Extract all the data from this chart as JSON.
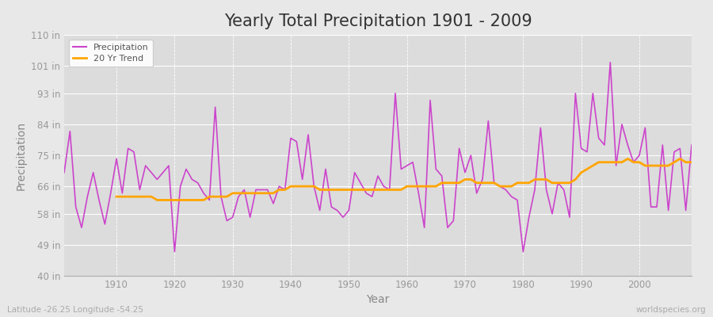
{
  "title": "Yearly Total Precipitation 1901 - 2009",
  "xlabel": "Year",
  "ylabel": "Precipitation",
  "subtitle": "Latitude -26.25 Longitude -54.25",
  "watermark": "worldspecies.org",
  "years": [
    1901,
    1902,
    1903,
    1904,
    1905,
    1906,
    1907,
    1908,
    1909,
    1910,
    1911,
    1912,
    1913,
    1914,
    1915,
    1916,
    1917,
    1918,
    1919,
    1920,
    1921,
    1922,
    1923,
    1924,
    1925,
    1926,
    1927,
    1928,
    1929,
    1930,
    1931,
    1932,
    1933,
    1934,
    1935,
    1936,
    1937,
    1938,
    1939,
    1940,
    1941,
    1942,
    1943,
    1944,
    1945,
    1946,
    1947,
    1948,
    1949,
    1950,
    1951,
    1952,
    1953,
    1954,
    1955,
    1956,
    1957,
    1958,
    1959,
    1960,
    1961,
    1962,
    1963,
    1964,
    1965,
    1966,
    1967,
    1968,
    1969,
    1970,
    1971,
    1972,
    1973,
    1974,
    1975,
    1976,
    1977,
    1978,
    1979,
    1980,
    1981,
    1982,
    1983,
    1984,
    1985,
    1986,
    1987,
    1988,
    1989,
    1990,
    1991,
    1992,
    1993,
    1994,
    1995,
    1996,
    1997,
    1998,
    1999,
    2000,
    2001,
    2002,
    2003,
    2004,
    2005,
    2006,
    2007,
    2008,
    2009
  ],
  "precip_in": [
    70,
    82,
    60,
    54,
    63,
    70,
    62,
    55,
    64,
    74,
    64,
    77,
    76,
    65,
    72,
    70,
    68,
    70,
    72,
    47,
    66,
    71,
    68,
    67,
    64,
    62,
    89,
    63,
    56,
    57,
    63,
    65,
    57,
    65,
    65,
    65,
    61,
    66,
    65,
    80,
    79,
    68,
    81,
    66,
    59,
    71,
    60,
    59,
    57,
    59,
    70,
    67,
    64,
    63,
    69,
    66,
    65,
    93,
    71,
    72,
    73,
    64,
    54,
    91,
    71,
    69,
    54,
    56,
    77,
    70,
    75,
    64,
    68,
    85,
    67,
    66,
    65,
    63,
    62,
    47,
    57,
    65,
    83,
    65,
    58,
    67,
    65,
    57,
    93,
    77,
    76,
    93,
    80,
    78,
    102,
    72,
    84,
    78,
    73,
    75,
    83,
    60,
    60,
    78,
    59,
    76,
    77,
    59,
    78
  ],
  "trend_years": [
    1910,
    1911,
    1912,
    1913,
    1914,
    1915,
    1916,
    1917,
    1918,
    1919,
    1920,
    1921,
    1922,
    1923,
    1924,
    1925,
    1926,
    1927,
    1928,
    1929,
    1930,
    1931,
    1932,
    1933,
    1934,
    1935,
    1936,
    1937,
    1938,
    1939,
    1940,
    1941,
    1942,
    1943,
    1944,
    1945,
    1946,
    1947,
    1948,
    1949,
    1950,
    1951,
    1952,
    1953,
    1954,
    1955,
    1956,
    1957,
    1958,
    1959,
    1960,
    1961,
    1962,
    1963,
    1964,
    1965,
    1966,
    1967,
    1968,
    1969,
    1970,
    1971,
    1972,
    1973,
    1974,
    1975,
    1976,
    1977,
    1978,
    1979,
    1980,
    1981,
    1982,
    1983,
    1984,
    1985,
    1986,
    1987,
    1988,
    1989,
    1990,
    1991,
    1992,
    1993,
    1994,
    1995,
    1996,
    1997,
    1998,
    1999,
    2000,
    2001,
    2002,
    2003,
    2004,
    2005,
    2006,
    2007,
    2008,
    2009
  ],
  "trend_in": [
    63,
    63,
    63,
    63,
    63,
    63,
    63,
    62,
    62,
    62,
    62,
    62,
    62,
    62,
    62,
    62,
    63,
    63,
    63,
    63,
    64,
    64,
    64,
    64,
    64,
    64,
    64,
    64,
    65,
    65,
    66,
    66,
    66,
    66,
    66,
    65,
    65,
    65,
    65,
    65,
    65,
    65,
    65,
    65,
    65,
    65,
    65,
    65,
    65,
    65,
    66,
    66,
    66,
    66,
    66,
    66,
    67,
    67,
    67,
    67,
    68,
    68,
    67,
    67,
    67,
    67,
    66,
    66,
    66,
    67,
    67,
    67,
    68,
    68,
    68,
    67,
    67,
    67,
    67,
    68,
    70,
    71,
    72,
    73,
    73,
    73,
    73,
    73,
    74,
    73,
    73,
    72,
    72,
    72,
    72,
    72,
    73,
    74,
    73,
    73
  ],
  "precip_color": "#CC44CC",
  "trend_color": "#FFA500",
  "bg_color": "#E8E8E8",
  "plot_bg_color": "#DCDCDC",
  "grid_color": "#FFFFFF",
  "ylim": [
    40,
    110
  ],
  "yticks": [
    40,
    49,
    58,
    66,
    75,
    84,
    93,
    101,
    110
  ],
  "ytick_labels": [
    "40 in",
    "49 in",
    "58 in",
    "66 in",
    "75 in",
    "84 in",
    "93 in",
    "101 in",
    "110 in"
  ],
  "xticks": [
    1910,
    1920,
    1930,
    1940,
    1950,
    1960,
    1970,
    1980,
    1990,
    2000
  ],
  "title_fontsize": 15,
  "axis_label_fontsize": 10,
  "tick_fontsize": 8.5
}
